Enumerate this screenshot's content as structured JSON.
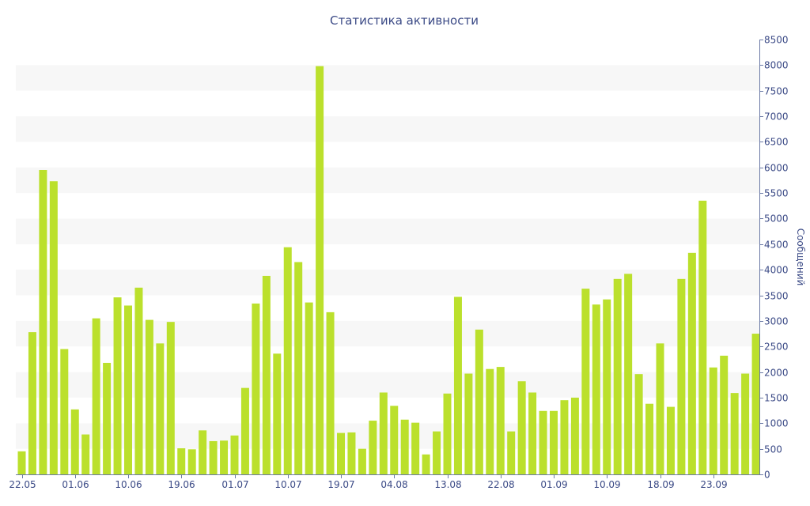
{
  "colors": {
    "bar": "#bbe02c",
    "band": "#f7f7f7",
    "axis": "#6b7aa6",
    "text": "#3b4a86"
  },
  "chart_data": {
    "type": "bar",
    "title": "Статистика активности",
    "xlabel": "",
    "ylabel": "Сообщений",
    "y_axis_position": "right",
    "ylim": [
      0,
      8500
    ],
    "yticks": [
      0,
      500,
      1000,
      1500,
      2000,
      2500,
      3000,
      3500,
      4000,
      4500,
      5000,
      5500,
      6000,
      6500,
      7000,
      7500,
      8000,
      8500
    ],
    "grid": "alternating-bands",
    "x_tick_labels": [
      {
        "index": 0,
        "label": "22.05"
      },
      {
        "index": 5,
        "label": "01.06"
      },
      {
        "index": 10,
        "label": "10.06"
      },
      {
        "index": 15,
        "label": "19.06"
      },
      {
        "index": 20,
        "label": "01.07"
      },
      {
        "index": 25,
        "label": "10.07"
      },
      {
        "index": 30,
        "label": "19.07"
      },
      {
        "index": 35,
        "label": "04.08"
      },
      {
        "index": 40,
        "label": "13.08"
      },
      {
        "index": 45,
        "label": "22.08"
      },
      {
        "index": 50,
        "label": "01.09"
      },
      {
        "index": 55,
        "label": "10.09"
      },
      {
        "index": 60,
        "label": "18.09"
      },
      {
        "index": 65,
        "label": "23.09"
      }
    ],
    "series": [
      {
        "values": [
          450,
          2780,
          5950,
          5730,
          2450,
          1270,
          780,
          3050,
          2180,
          3460,
          3300,
          3650,
          3020,
          2560,
          2980,
          510,
          490,
          860,
          650,
          660,
          760,
          1690,
          3340,
          3880,
          2360,
          4440,
          4150,
          3360,
          7980,
          3170,
          810,
          820,
          500,
          1050,
          1600,
          1340,
          1070,
          1010,
          390,
          840,
          1580,
          3470,
          1970,
          2830,
          2060,
          2100,
          840,
          1820,
          1600,
          1240,
          1240,
          1450,
          1500,
          3630,
          3320,
          3420,
          3820,
          3920,
          1960,
          1380,
          2560,
          1320,
          3820,
          4330,
          5350,
          2090,
          2320,
          1590,
          1970,
          2750
        ]
      }
    ]
  }
}
